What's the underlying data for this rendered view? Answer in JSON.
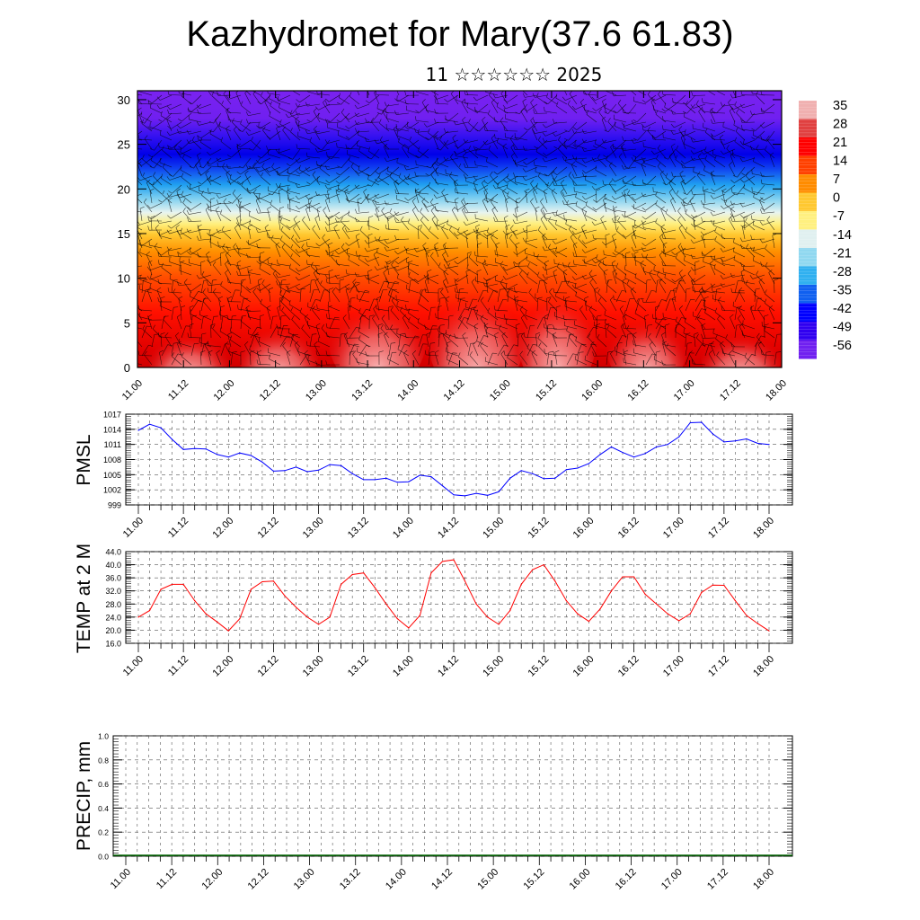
{
  "header": {
    "title": "Kazhydromet for Mary(37.6 61.83)",
    "subtitle": "11 ☆☆☆☆☆☆ 2025"
  },
  "x_ticks": [
    "11.00",
    "11.12",
    "12.00",
    "12.12",
    "13.00",
    "13.12",
    "14.00",
    "14.12",
    "15.00",
    "15.12",
    "16.00",
    "16.12",
    "17.00",
    "17.12",
    "18.00"
  ],
  "chart_data": [
    {
      "type": "heatmap",
      "title": "",
      "xlabel": "",
      "ylabel": "",
      "ylim": [
        0,
        31
      ],
      "yticks": [
        0,
        5,
        10,
        15,
        20,
        25,
        30
      ],
      "colorbar": {
        "labels": [
          "35",
          "28",
          "21",
          "14",
          "7",
          "0",
          "-7",
          "-14",
          "-21",
          "-28",
          "-35",
          "-42",
          "-49",
          "-56"
        ],
        "colors": [
          "#f0b0b0",
          "#e04040",
          "#ff0000",
          "#ff4000",
          "#ff8c00",
          "#ffc830",
          "#fff080",
          "#e0f0f0",
          "#90d8f0",
          "#30b0f0",
          "#1060f0",
          "#0000ff",
          "#3000f0",
          "#7020f0"
        ]
      },
      "overlay": "wind-barbs"
    },
    {
      "type": "line",
      "title": "",
      "ylabel": "PMSL",
      "ylim": [
        999,
        1017
      ],
      "yticks": [
        999,
        1002,
        1005,
        1008,
        1011,
        1014,
        1017
      ],
      "series": [
        {
          "color": "#0000ff",
          "values": [
            1013.8,
            1015,
            1014.3,
            1012,
            1010,
            1010.2,
            1010.1,
            1009,
            1008.5,
            1009.3,
            1008.8,
            1007.5,
            1005.7,
            1005.8,
            1006.5,
            1005.6,
            1005.9,
            1007,
            1006.8,
            1005.2,
            1004,
            1004,
            1004.3,
            1003.5,
            1003.6,
            1004.9,
            1004.6,
            1002.8,
            1001,
            1000.8,
            1001.3,
            1000.9,
            1001.6,
            1004.3,
            1005.8,
            1005.2,
            1004.2,
            1004.3,
            1006,
            1006.3,
            1007.2,
            1009,
            1010.5,
            1009.4,
            1008.5,
            1009.2,
            1010.5,
            1011,
            1012.5,
            1015.3,
            1015.4,
            1013.1,
            1011.5,
            1011.7,
            1012.1,
            1011.2,
            1011
          ]
        }
      ]
    },
    {
      "type": "line",
      "title": "",
      "ylabel": "TEMP at 2 M",
      "ylim": [
        16,
        44
      ],
      "yticks": [
        "16.0",
        "20.0",
        "24.0",
        "28.0",
        "32.0",
        "36.0",
        "40.0",
        "44.0"
      ],
      "series": [
        {
          "color": "#ff0000",
          "values": [
            24,
            26,
            32.5,
            34,
            34,
            29,
            25,
            22.5,
            19.8,
            23.5,
            32.5,
            34.8,
            35,
            30.5,
            27,
            24,
            21.8,
            24,
            34,
            37,
            37.5,
            33,
            28,
            23.5,
            20.7,
            24.5,
            37.5,
            41,
            41.5,
            35,
            28,
            24,
            21.8,
            26,
            34,
            38.5,
            40,
            35,
            29,
            25,
            22.7,
            26.5,
            32,
            36.3,
            36.3,
            31,
            28,
            25,
            22.9,
            25,
            31.5,
            33.8,
            33.7,
            29,
            24.5,
            22,
            19.8
          ]
        }
      ]
    },
    {
      "type": "bar",
      "title": "",
      "ylabel": "PRECIP, mm",
      "ylim": [
        0,
        1
      ],
      "yticks": [
        "0.0",
        "0.2",
        "0.4",
        "0.6",
        "0.8",
        "1.0"
      ],
      "series": [
        {
          "color": "#006400",
          "values": [
            0,
            0,
            0,
            0,
            0,
            0,
            0,
            0,
            0,
            0,
            0,
            0,
            0,
            0,
            0,
            0,
            0,
            0,
            0,
            0,
            0,
            0,
            0,
            0,
            0,
            0,
            0,
            0,
            0,
            0,
            0,
            0,
            0,
            0,
            0,
            0,
            0,
            0,
            0,
            0,
            0,
            0,
            0,
            0,
            0,
            0,
            0,
            0,
            0,
            0,
            0,
            0,
            0,
            0,
            0,
            0,
            0
          ]
        }
      ]
    }
  ]
}
